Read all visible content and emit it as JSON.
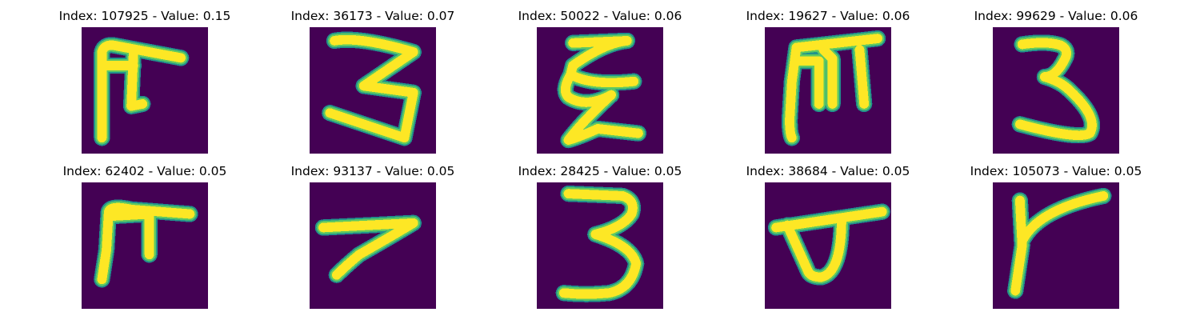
{
  "colors": {
    "background": "#440154",
    "stroke_core": "#fde725",
    "stroke_mid": "#5ec962",
    "stroke_edge": "#21918c"
  },
  "panels": [
    {
      "title": "Index: 107925 - Value: 0.15"
    },
    {
      "title": "Index: 36173 - Value: 0.07"
    },
    {
      "title": "Index: 50022 - Value: 0.06"
    },
    {
      "title": "Index: 19627 - Value: 0.06"
    },
    {
      "title": "Index: 99629 - Value: 0.06"
    },
    {
      "title": "Index: 62402 - Value: 0.05"
    },
    {
      "title": "Index: 93137 - Value: 0.05"
    },
    {
      "title": "Index: 28425 - Value: 0.05"
    },
    {
      "title": "Index: 38684 - Value: 0.05"
    },
    {
      "title": "Index: 105073 - Value: 0.05"
    }
  ]
}
